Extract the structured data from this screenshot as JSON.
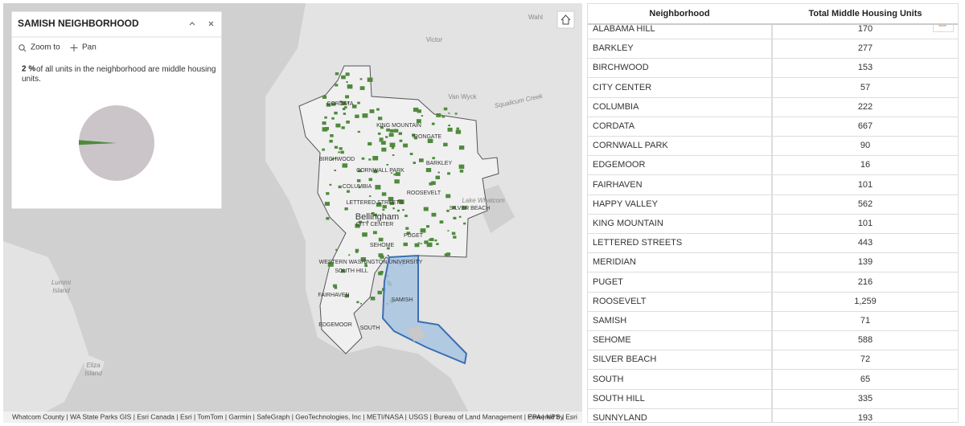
{
  "popup": {
    "title": "SAMISH NEIGHBORHOOD",
    "actions": [
      "Zoom to",
      "Pan"
    ],
    "pie": {
      "value": 2,
      "label": "2 %"
    },
    "text": "of all units in the neighborhood are middle housing units."
  },
  "map": {
    "labels": [
      "CORDATA",
      "KING MOUNTAIN",
      "IRONGATE",
      "BIRCHWOOD",
      "CORNWALL PARK",
      "BARKLEY",
      "COLUMBIA",
      "ROOSEVELT",
      "LETTERED STREETS",
      "SILVER BEACH",
      "Bellingham",
      "CITY CENTER",
      "PUGET",
      "SEHOME",
      "WESTERN WASHINGTON UNIVERSITY",
      "SOUTH HILL",
      "FAIRHAVEN",
      "SAMISH",
      "EDGEMOOR",
      "SOUTH",
      "Wahl",
      "Victor",
      "Van Wyck",
      "Squalicum Creek",
      "Lake Whatcom",
      "Lummi Island",
      "Eliza Island"
    ],
    "attribution": "Whatcom County | WA State Parks GIS | Esri Canada | Esri | TomTom | Garmin | SafeGraph | GeoTechnologies, Inc | METI/NASA | USGS | Bureau of Land Management | EPA | NPS | ...",
    "powered_by": "Powered by Esri"
  },
  "table": {
    "columns": [
      "Neighborhood",
      "Total Middle Housing Units"
    ],
    "rows": [
      [
        "ALABAMA HILL",
        "170"
      ],
      [
        "BARKLEY",
        "277"
      ],
      [
        "BIRCHWOOD",
        "153"
      ],
      [
        "CITY CENTER",
        "57"
      ],
      [
        "COLUMBIA",
        "222"
      ],
      [
        "CORDATA",
        "667"
      ],
      [
        "CORNWALL PARK",
        "90"
      ],
      [
        "EDGEMOOR",
        "16"
      ],
      [
        "FAIRHAVEN",
        "101"
      ],
      [
        "HAPPY VALLEY",
        "562"
      ],
      [
        "KING MOUNTAIN",
        "101"
      ],
      [
        "LETTERED STREETS",
        "443"
      ],
      [
        "MERIDIAN",
        "139"
      ],
      [
        "PUGET",
        "216"
      ],
      [
        "ROOSEVELT",
        "1,259"
      ],
      [
        "SAMISH",
        "71"
      ],
      [
        "SEHOME",
        "588"
      ],
      [
        "SILVER BEACH",
        "72"
      ],
      [
        "SOUTH",
        "65"
      ],
      [
        "SOUTH HILL",
        "335"
      ],
      [
        "SUNNYLAND",
        "193"
      ]
    ]
  }
}
